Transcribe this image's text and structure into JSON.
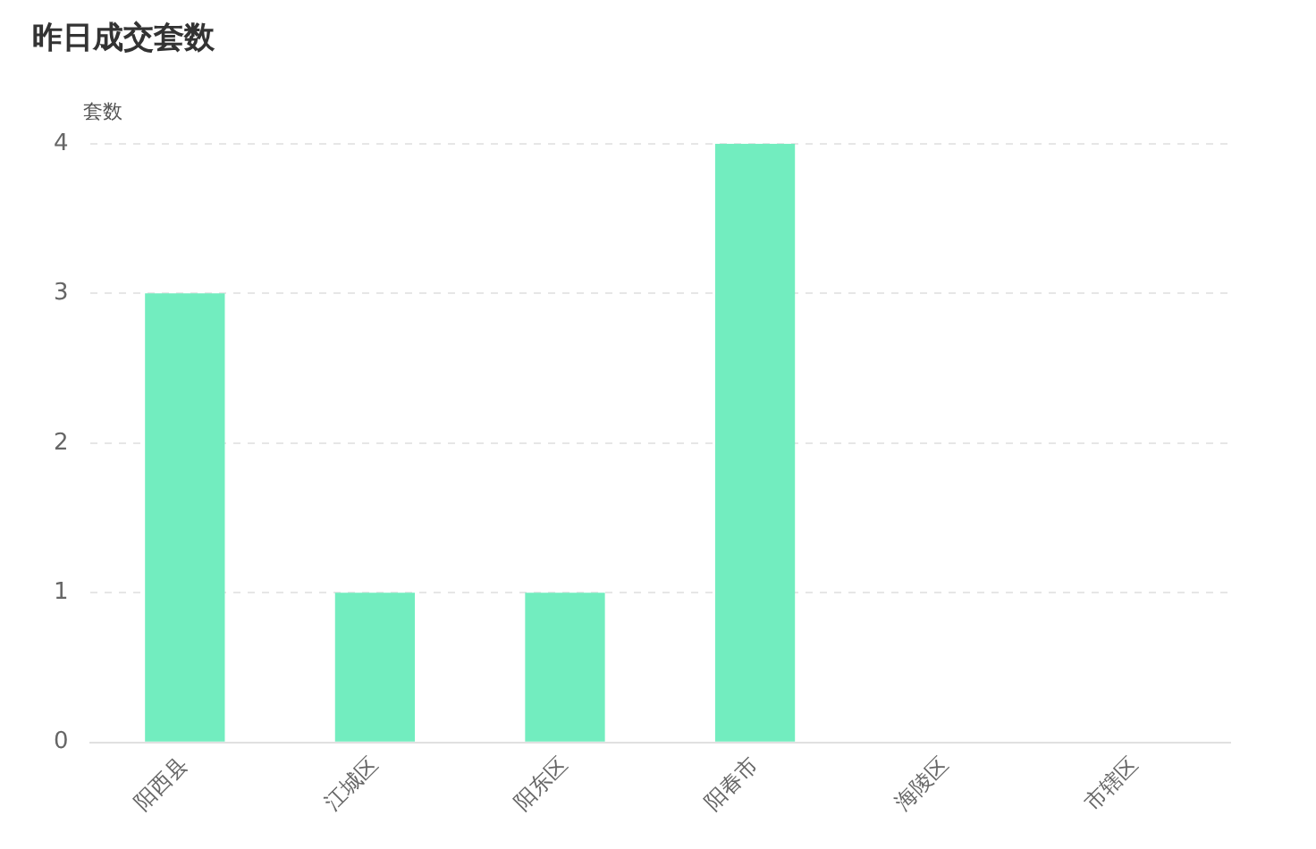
{
  "chart_data": {
    "type": "bar",
    "title": "昨日成交套数",
    "ylabel": "套数",
    "categories": [
      "阳西县",
      "江城区",
      "阳东区",
      "阳春市",
      "海陵区",
      "市辖区"
    ],
    "values": [
      3,
      1,
      1,
      4,
      0,
      0
    ],
    "color": "#72edbf",
    "ylim": [
      0,
      4
    ],
    "yticks": [
      0,
      1,
      2,
      3,
      4
    ],
    "grid": "y"
  }
}
